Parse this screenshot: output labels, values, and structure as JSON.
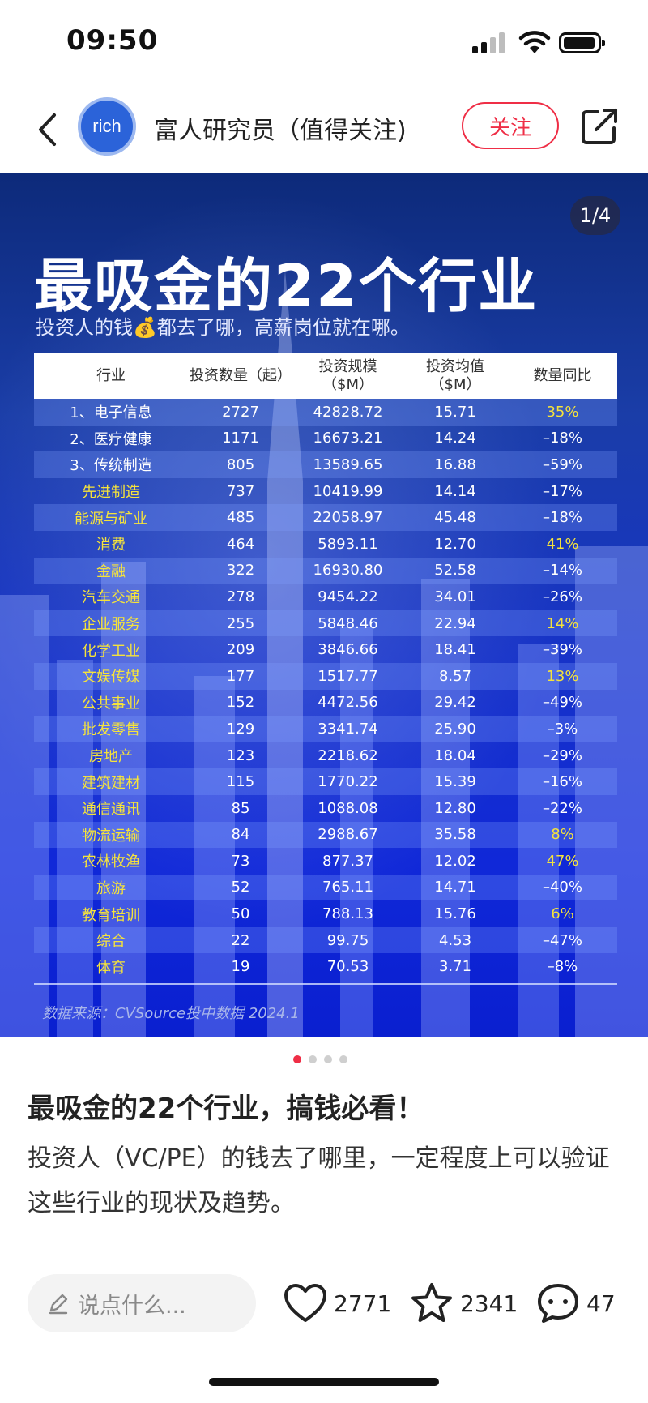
{
  "status_bar": {
    "time": "09:50"
  },
  "header": {
    "avatar_text": "rich",
    "author": "富人研究员（值得关注)",
    "follow_label": "关注"
  },
  "image": {
    "page_indicator": "1/4",
    "title": "最吸金的22个行业",
    "subtitle": "投资人的钱💰都去了哪，高薪岗位就在哪。",
    "columns": [
      "行业",
      "投资数量（起）",
      "投资规模\n（$M）",
      "投资均值\n（$M）",
      "数量同比"
    ],
    "rows": [
      {
        "industry": "1、电子信息",
        "count": "2727",
        "scale": "42828.72",
        "avg": "15.71",
        "yoy": "35%",
        "style": "plain",
        "pos": true
      },
      {
        "industry": "2、医疗健康",
        "count": "1171",
        "scale": "16673.21",
        "avg": "14.24",
        "yoy": "–18%",
        "style": "plain",
        "pos": false
      },
      {
        "industry": "3、传统制造",
        "count": "805",
        "scale": "13589.65",
        "avg": "16.88",
        "yoy": "–59%",
        "style": "plain",
        "pos": false
      },
      {
        "industry": "先进制造",
        "count": "737",
        "scale": "10419.99",
        "avg": "14.14",
        "yoy": "–17%",
        "style": "yellow",
        "pos": false
      },
      {
        "industry": "能源与矿业",
        "count": "485",
        "scale": "22058.97",
        "avg": "45.48",
        "yoy": "–18%",
        "style": "yellow",
        "pos": false
      },
      {
        "industry": "消费",
        "count": "464",
        "scale": "5893.11",
        "avg": "12.70",
        "yoy": "41%",
        "style": "yellow",
        "pos": true
      },
      {
        "industry": "金融",
        "count": "322",
        "scale": "16930.80",
        "avg": "52.58",
        "yoy": "–14%",
        "style": "yellow",
        "pos": false
      },
      {
        "industry": "汽车交通",
        "count": "278",
        "scale": "9454.22",
        "avg": "34.01",
        "yoy": "–26%",
        "style": "yellow",
        "pos": false
      },
      {
        "industry": "企业服务",
        "count": "255",
        "scale": "5848.46",
        "avg": "22.94",
        "yoy": "14%",
        "style": "yellow",
        "pos": true
      },
      {
        "industry": "化学工业",
        "count": "209",
        "scale": "3846.66",
        "avg": "18.41",
        "yoy": "–39%",
        "style": "yellow",
        "pos": false
      },
      {
        "industry": "文娱传媒",
        "count": "177",
        "scale": "1517.77",
        "avg": "8.57",
        "yoy": "13%",
        "style": "yellow",
        "pos": true
      },
      {
        "industry": "公共事业",
        "count": "152",
        "scale": "4472.56",
        "avg": "29.42",
        "yoy": "–49%",
        "style": "yellow",
        "pos": false
      },
      {
        "industry": "批发零售",
        "count": "129",
        "scale": "3341.74",
        "avg": "25.90",
        "yoy": "–3%",
        "style": "yellow",
        "pos": false
      },
      {
        "industry": "房地产",
        "count": "123",
        "scale": "2218.62",
        "avg": "18.04",
        "yoy": "–29%",
        "style": "yellow",
        "pos": false
      },
      {
        "industry": "建筑建材",
        "count": "115",
        "scale": "1770.22",
        "avg": "15.39",
        "yoy": "–16%",
        "style": "yellow",
        "pos": false
      },
      {
        "industry": "通信通讯",
        "count": "85",
        "scale": "1088.08",
        "avg": "12.80",
        "yoy": "–22%",
        "style": "yellow",
        "pos": false
      },
      {
        "industry": "物流运输",
        "count": "84",
        "scale": "2988.67",
        "avg": "35.58",
        "yoy": "8%",
        "style": "yellow",
        "pos": true
      },
      {
        "industry": "农林牧渔",
        "count": "73",
        "scale": "877.37",
        "avg": "12.02",
        "yoy": "47%",
        "style": "yellow",
        "pos": true
      },
      {
        "industry": "旅游",
        "count": "52",
        "scale": "765.11",
        "avg": "14.71",
        "yoy": "–40%",
        "style": "yellow",
        "pos": false
      },
      {
        "industry": "教育培训",
        "count": "50",
        "scale": "788.13",
        "avg": "15.76",
        "yoy": "6%",
        "style": "yellow",
        "pos": true
      },
      {
        "industry": "综合",
        "count": "22",
        "scale": "99.75",
        "avg": "4.53",
        "yoy": "–47%",
        "style": "yellow",
        "pos": false
      },
      {
        "industry": "体育",
        "count": "19",
        "scale": "70.53",
        "avg": "3.71",
        "yoy": "–8%",
        "style": "yellow",
        "pos": false
      }
    ],
    "source": "数据来源：CVSource投中数据 2024.1"
  },
  "carousel": {
    "total": 4,
    "active": 0
  },
  "post": {
    "title": "最吸金的22个行业，搞钱必看！",
    "body": "投资人（VC/PE）的钱去了哪里，一定程度上可以验证这些行业的现状及趋势。"
  },
  "bottom_bar": {
    "comment_placeholder": "说点什么...",
    "likes": "2771",
    "favorites": "2341",
    "comments": "47"
  },
  "colors": {
    "accent_red": "#ef2e46",
    "highlight_yellow": "#f5e33b",
    "card_blue": "#1733c7"
  }
}
